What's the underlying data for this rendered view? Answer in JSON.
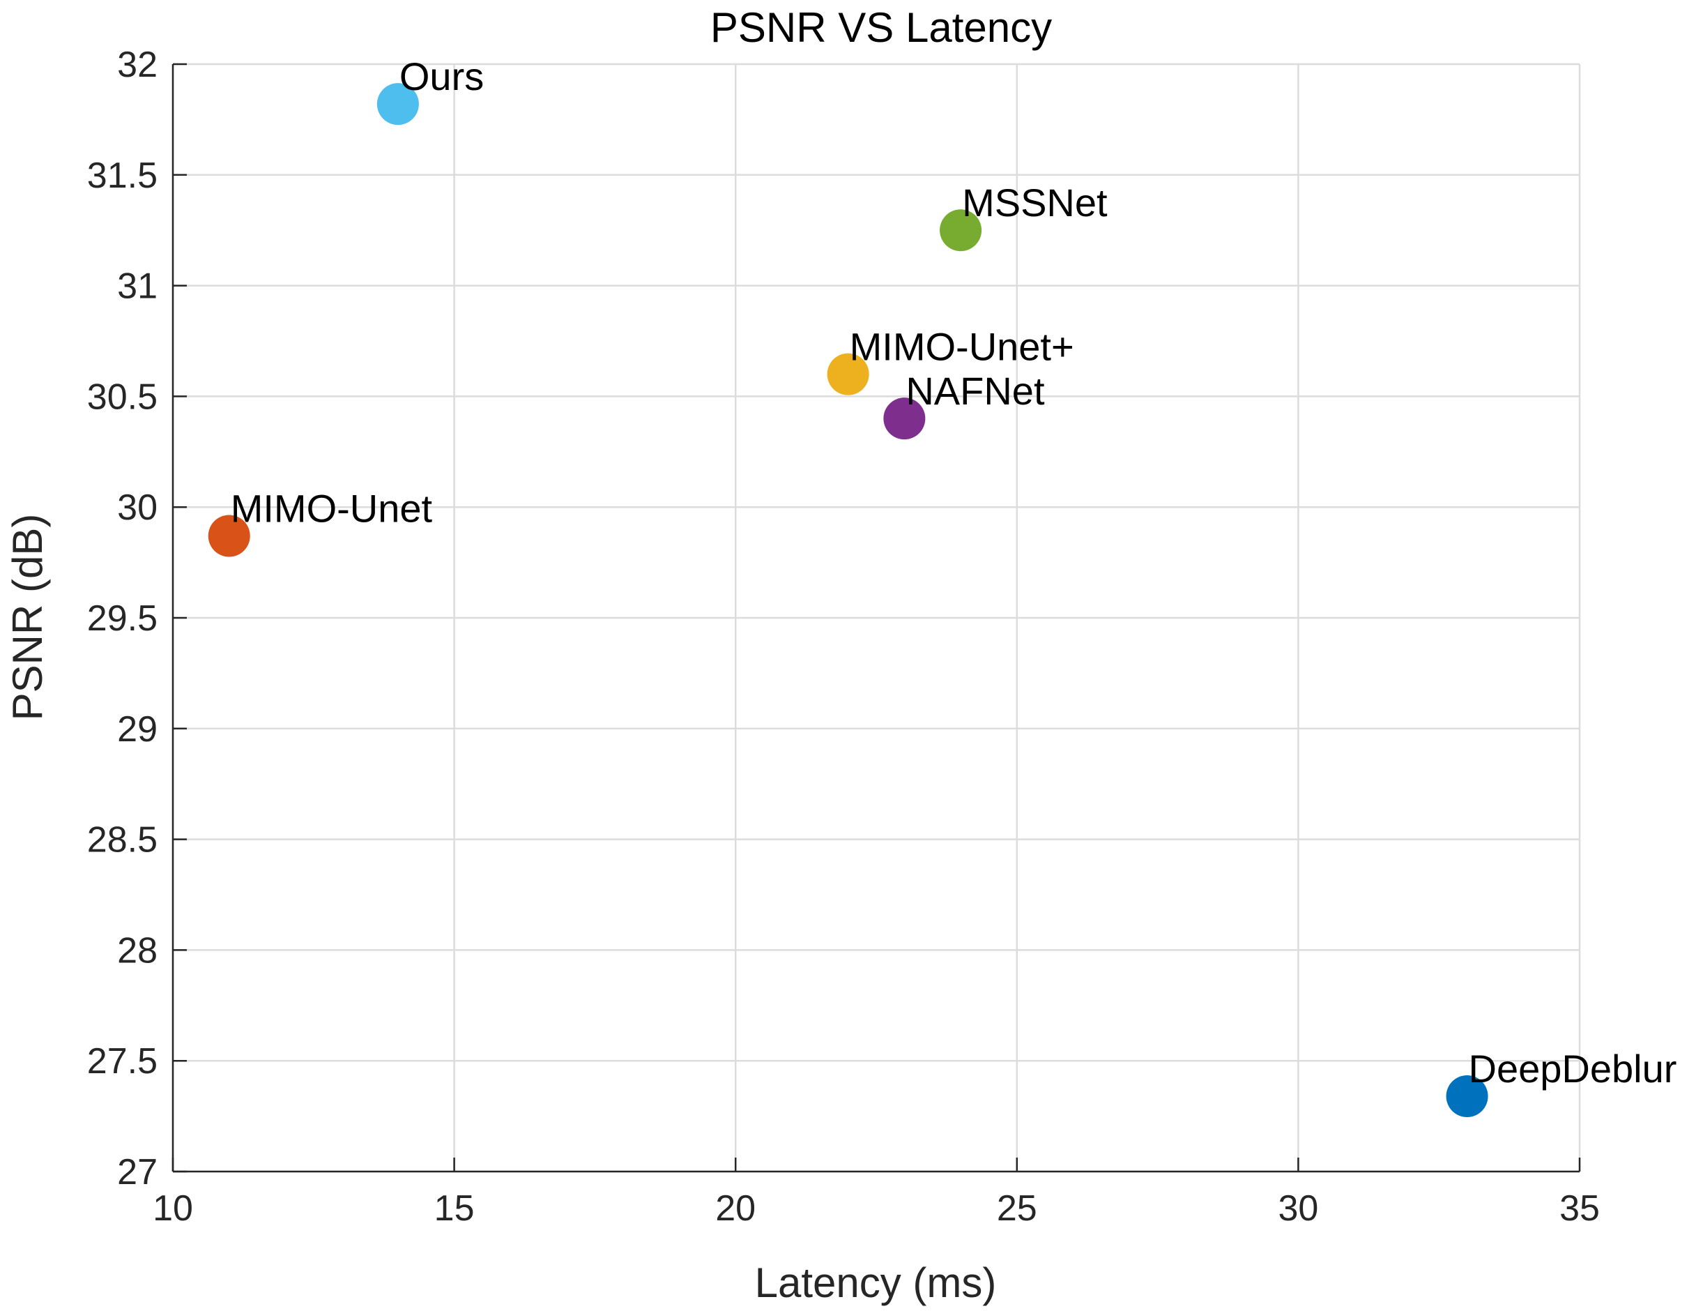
{
  "chart_data": {
    "type": "scatter",
    "title": "PSNR VS Latency",
    "xlabel": "Latency (ms)",
    "ylabel": "PSNR (dB)",
    "xlim": [
      10,
      35
    ],
    "ylim": [
      27,
      32
    ],
    "xticks": [
      10,
      15,
      20,
      25,
      30,
      35
    ],
    "yticks": [
      27,
      27.5,
      28,
      28.5,
      29,
      29.5,
      30,
      30.5,
      31,
      31.5,
      32
    ],
    "xtick_labels": [
      "10",
      "15",
      "20",
      "25",
      "30",
      "35"
    ],
    "ytick_labels": [
      "27",
      "27.5",
      "28",
      "28.5",
      "29",
      "29.5",
      "30",
      "30.5",
      "31",
      "31.5",
      "32"
    ],
    "grid": true,
    "points": [
      {
        "label": "Ours",
        "x": 14,
        "y": 31.82,
        "color": "#4DBEEE"
      },
      {
        "label": "MSSNet",
        "x": 24,
        "y": 31.25,
        "color": "#77AC30"
      },
      {
        "label": "MIMO-Unet+",
        "x": 22,
        "y": 30.6,
        "color": "#EDB120"
      },
      {
        "label": "NAFNet",
        "x": 23,
        "y": 30.4,
        "color": "#7E2F8E"
      },
      {
        "label": "MIMO-Unet",
        "x": 11,
        "y": 29.87,
        "color": "#D95319"
      },
      {
        "label": "DeepDeblur",
        "x": 33,
        "y": 27.34,
        "color": "#0072BD"
      }
    ]
  }
}
